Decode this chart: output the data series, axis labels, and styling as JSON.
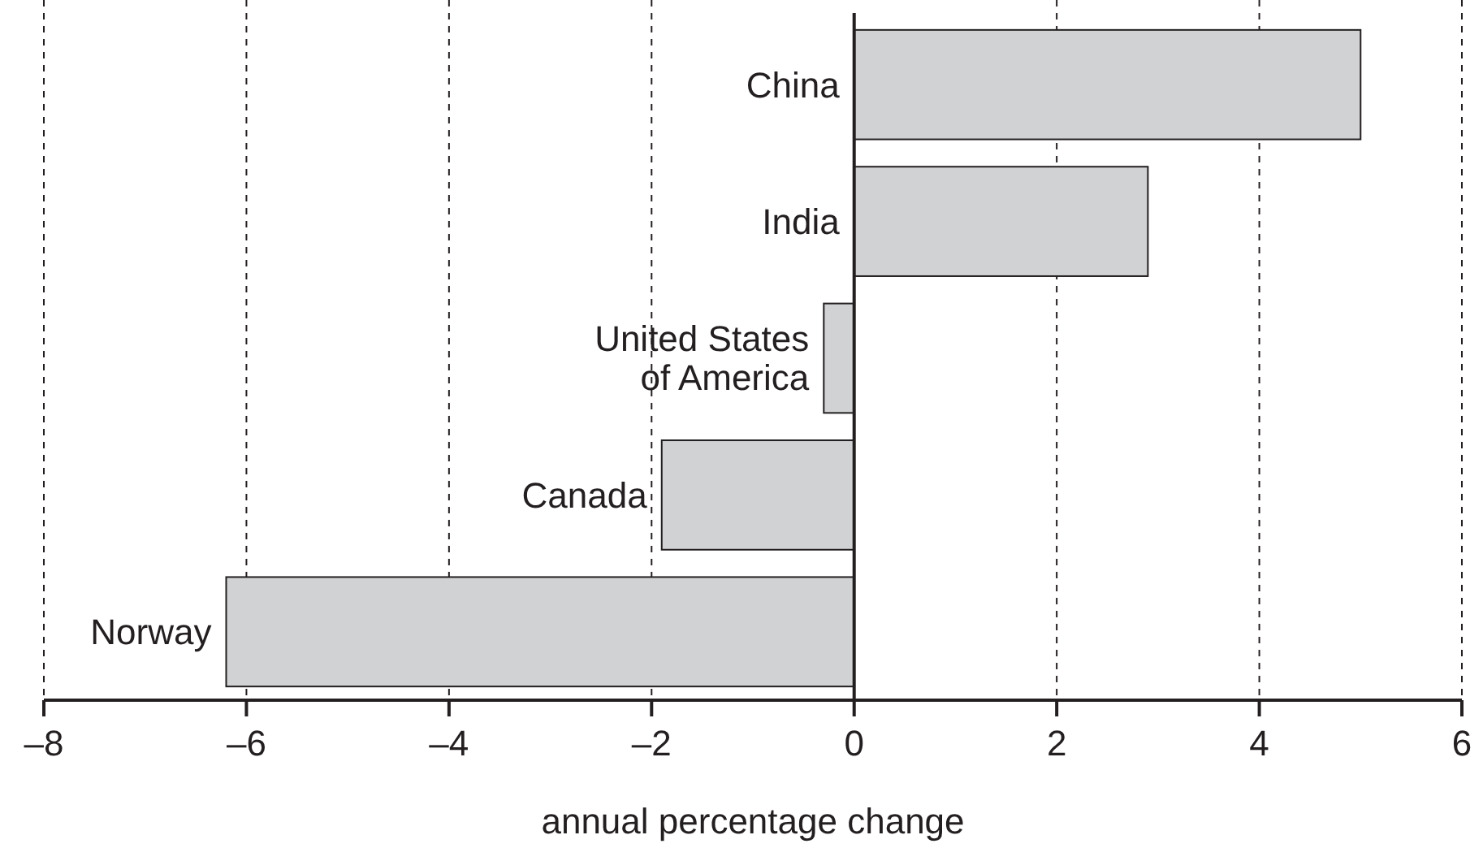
{
  "chart_data": {
    "type": "bar",
    "orientation": "horizontal",
    "xlabel": "annual percentage change",
    "categories": [
      "China",
      "India",
      "United States of America",
      "Canada",
      "Norway"
    ],
    "values": [
      5.0,
      2.9,
      -0.3,
      -1.9,
      -6.2
    ],
    "color": "#d1d2d4",
    "xlim": [
      -8,
      6
    ],
    "xticks": [
      {
        "value": -8,
        "label": "–8"
      },
      {
        "value": -6,
        "label": "–6"
      },
      {
        "value": -4,
        "label": "–4"
      },
      {
        "value": -2,
        "label": "–2"
      },
      0,
      2,
      4,
      6
    ],
    "grid": "x"
  }
}
